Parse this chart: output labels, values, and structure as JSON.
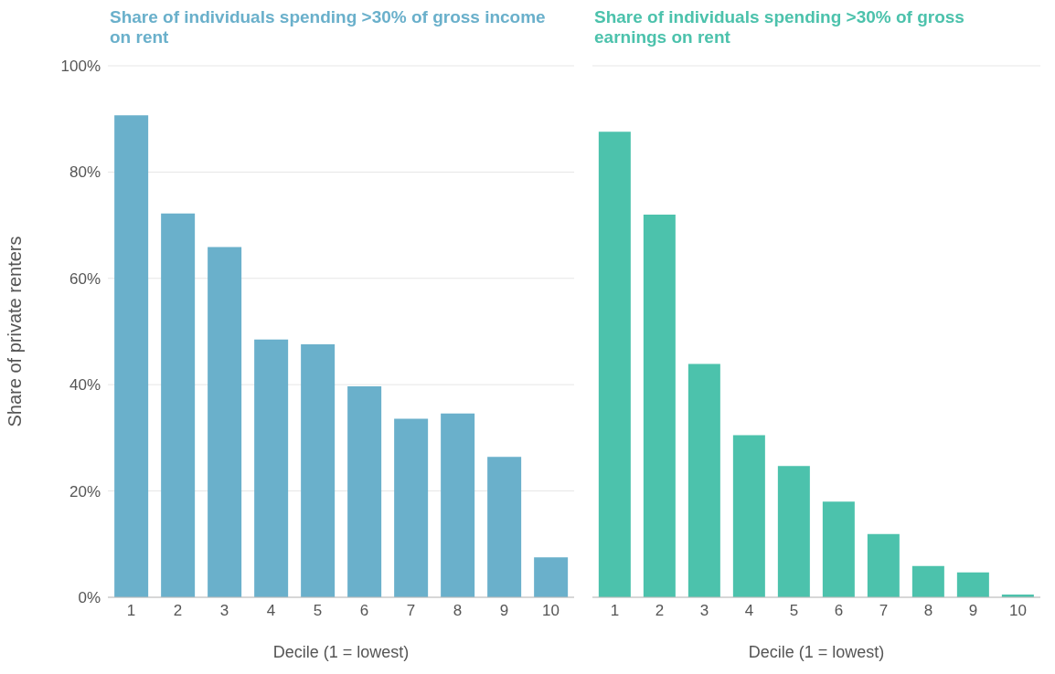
{
  "chart_data": [
    {
      "type": "bar",
      "title": "Share of individuals spending >30% of gross income on rent",
      "xlabel": "Decile (1 = lowest)",
      "ylabel": "Share of private renters",
      "categories": [
        "1",
        "2",
        "3",
        "4",
        "5",
        "6",
        "7",
        "8",
        "9",
        "10"
      ],
      "values": [
        90.7,
        72.2,
        65.9,
        48.5,
        47.6,
        39.7,
        33.6,
        34.6,
        26.4,
        7.5
      ],
      "color": "#6ab0cb",
      "ylim": [
        0,
        100
      ],
      "yticks": [
        {
          "value": 0,
          "label": "0%"
        },
        {
          "value": 20,
          "label": "20%"
        },
        {
          "value": 40,
          "label": "40%"
        },
        {
          "value": 60,
          "label": "60%"
        },
        {
          "value": 80,
          "label": "80%"
        },
        {
          "value": 100,
          "label": "100%"
        }
      ],
      "grid": "y"
    },
    {
      "type": "bar",
      "title": "Share of individuals spending >30% of gross earnings on rent",
      "xlabel": "Decile (1 = lowest)",
      "categories": [
        "1",
        "2",
        "3",
        "4",
        "5",
        "6",
        "7",
        "8",
        "9",
        "10"
      ],
      "values": [
        87.6,
        72.0,
        43.9,
        30.5,
        24.7,
        18.0,
        11.9,
        5.9,
        4.7,
        0.5
      ],
      "color": "#4cc2ac",
      "ylim": [
        0,
        100
      ],
      "yticks": [
        {
          "value": 0,
          "label": null
        },
        {
          "value": 20,
          "label": null
        },
        {
          "value": 40,
          "label": null
        },
        {
          "value": 60,
          "label": null
        },
        {
          "value": 80,
          "label": null
        },
        {
          "value": 100,
          "label": null
        }
      ],
      "grid": "y",
      "tick_labels": "x"
    }
  ]
}
